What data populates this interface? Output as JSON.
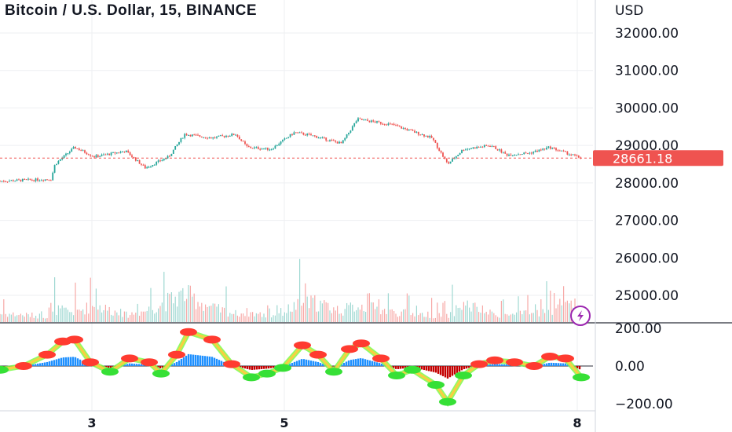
{
  "header": {
    "title": "Bitcoin / U.S. Dollar, 15, BINANCE",
    "currency": "USD"
  },
  "colors": {
    "up": "#26a69a",
    "down": "#ef5350",
    "price_tag": "#ef5350",
    "oscillator_up": "#1e90ff",
    "oscillator_down": "#c40000",
    "osc_mark": "#ff3b30",
    "osc_mark_low": "#36e036",
    "grid": "#eeeff2"
  },
  "icons": {
    "logo": "lightning-bolt-icon"
  },
  "chart_data": [
    {
      "type": "candlestick",
      "title": "Bitcoin / U.S. Dollar, 15, BINANCE",
      "ylabel": "USD",
      "ylim": [
        24400,
        32600
      ],
      "y_ticks": [
        "32000.00",
        "31000.00",
        "30000.00",
        "29000.00",
        "28000.00",
        "27000.00",
        "26000.00",
        "25000.00"
      ],
      "x_ticks": [
        "3",
        "5",
        "8"
      ],
      "last_price": "28661.18",
      "series": [
        {
          "name": "price",
          "x": [
            0,
            65,
            70,
            95,
            120,
            160,
            185,
            215,
            235,
            270,
            300,
            315,
            345,
            375,
            400,
            435,
            455,
            500,
            550,
            570,
            590,
            625,
            645,
            675,
            700,
            740
          ],
          "values": [
            28050,
            28100,
            28500,
            28950,
            28700,
            28850,
            28400,
            28700,
            29300,
            29200,
            29300,
            28950,
            28900,
            29350,
            29250,
            29050,
            29700,
            29550,
            29200,
            28500,
            28900,
            29000,
            28750,
            28800,
            28950,
            28661
          ]
        },
        {
          "name": "volume",
          "values": [
            0.3,
            0.2,
            0.45,
            0.35,
            0.6,
            0.25,
            0.4,
            0.75,
            1.0,
            0.5,
            0.3,
            0.35,
            0.2,
            0.55,
            0.7,
            0.4,
            0.6,
            0.35,
            0.25,
            0.2,
            0.65,
            0.3,
            0.25,
            0.3,
            0.4,
            0.65
          ]
        }
      ]
    },
    {
      "type": "area",
      "name": "oscillator",
      "ylim": [
        -220,
        220
      ],
      "y_ticks": [
        "200.00",
        "0.00",
        "−200.00"
      ],
      "x": [
        0,
        30,
        60,
        80,
        95,
        115,
        140,
        165,
        190,
        205,
        225,
        240,
        270,
        295,
        320,
        340,
        360,
        385,
        405,
        425,
        445,
        460,
        485,
        505,
        525,
        555,
        570,
        590,
        610,
        630,
        655,
        680,
        700,
        720,
        740
      ],
      "values": [
        -20,
        0,
        60,
        130,
        140,
        20,
        -30,
        40,
        20,
        -40,
        60,
        180,
        140,
        10,
        -60,
        -40,
        -10,
        110,
        60,
        -30,
        90,
        120,
        40,
        -50,
        -20,
        -100,
        -190,
        -50,
        10,
        30,
        20,
        0,
        50,
        40,
        -60
      ]
    }
  ]
}
